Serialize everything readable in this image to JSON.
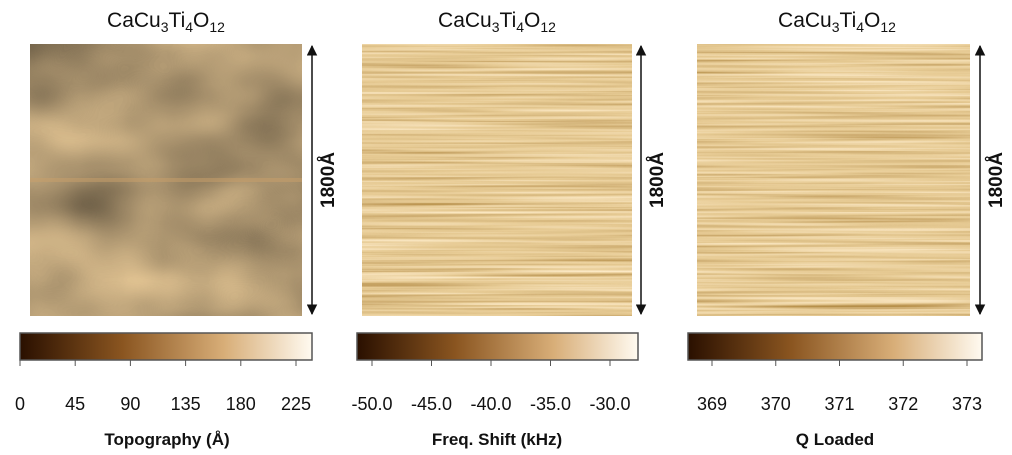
{
  "panels": [
    {
      "title": [
        "CaCu",
        "3",
        "Ti",
        "4",
        "O",
        "12"
      ],
      "scale_label": "1800Å",
      "colorbar": {
        "ticks": [
          "0",
          "45",
          "90",
          "135",
          "180",
          "225"
        ],
        "label": "Topography (Å)"
      }
    },
    {
      "title": [
        "CaCu",
        "3",
        "Ti",
        "4",
        "O",
        "12"
      ],
      "scale_label": "1800Å",
      "colorbar": {
        "ticks": [
          "-50.0",
          "-45.0",
          "-40.0",
          "-35.0",
          "-30.0"
        ],
        "label": "Freq. Shift (kHz)"
      }
    },
    {
      "title": [
        "CaCu",
        "3",
        "Ti",
        "4",
        "O",
        "12"
      ],
      "scale_label": "1800Å",
      "colorbar": {
        "ticks": [
          "369",
          "370",
          "371",
          "372",
          "373"
        ],
        "label": "Q Loaded"
      }
    }
  ]
}
